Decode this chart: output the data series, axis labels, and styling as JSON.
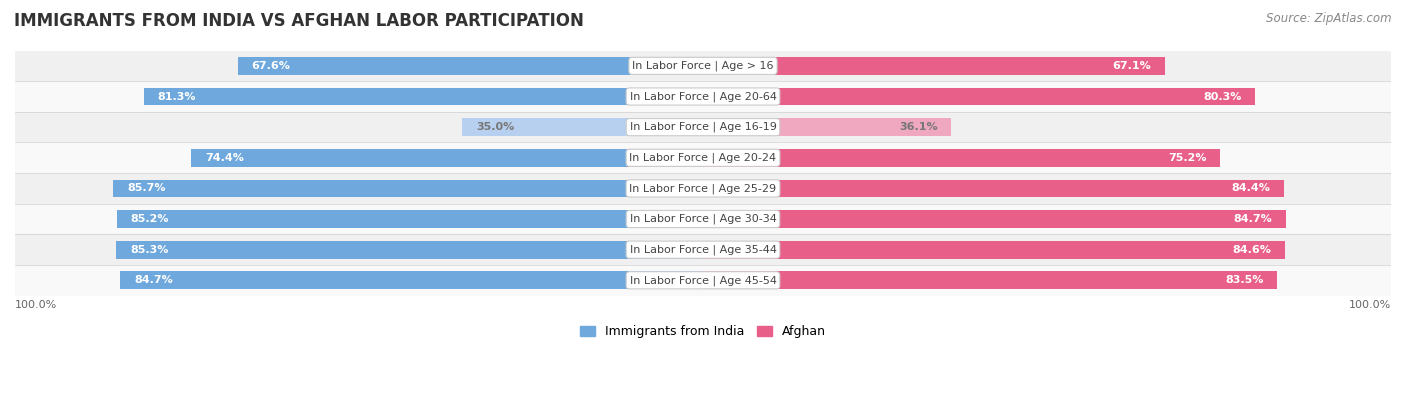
{
  "title": "IMMIGRANTS FROM INDIA VS AFGHAN LABOR PARTICIPATION",
  "source": "Source: ZipAtlas.com",
  "categories": [
    "In Labor Force | Age > 16",
    "In Labor Force | Age 20-64",
    "In Labor Force | Age 16-19",
    "In Labor Force | Age 20-24",
    "In Labor Force | Age 25-29",
    "In Labor Force | Age 30-34",
    "In Labor Force | Age 35-44",
    "In Labor Force | Age 45-54"
  ],
  "india_values": [
    67.6,
    81.3,
    35.0,
    74.4,
    85.7,
    85.2,
    85.3,
    84.7
  ],
  "afghan_values": [
    67.1,
    80.3,
    36.1,
    75.2,
    84.4,
    84.7,
    84.6,
    83.5
  ],
  "india_color": "#6fa8dc",
  "india_light_color": "#b8d0f0",
  "afghan_color": "#e8608a",
  "afghan_light_color": "#f0a8c0",
  "bar_height": 0.58,
  "row_bg_colors": [
    "#f0f0f0",
    "#f9f9f9",
    "#f0f0f0",
    "#f9f9f9",
    "#f0f0f0",
    "#f9f9f9",
    "#f0f0f0",
    "#f9f9f9"
  ],
  "max_value": 100.0,
  "legend_india_label": "Immigrants from India",
  "legend_afghan_label": "Afghan",
  "title_fontsize": 12,
  "source_fontsize": 8.5,
  "label_fontsize": 8,
  "category_fontsize": 8,
  "light_row_index": 2
}
